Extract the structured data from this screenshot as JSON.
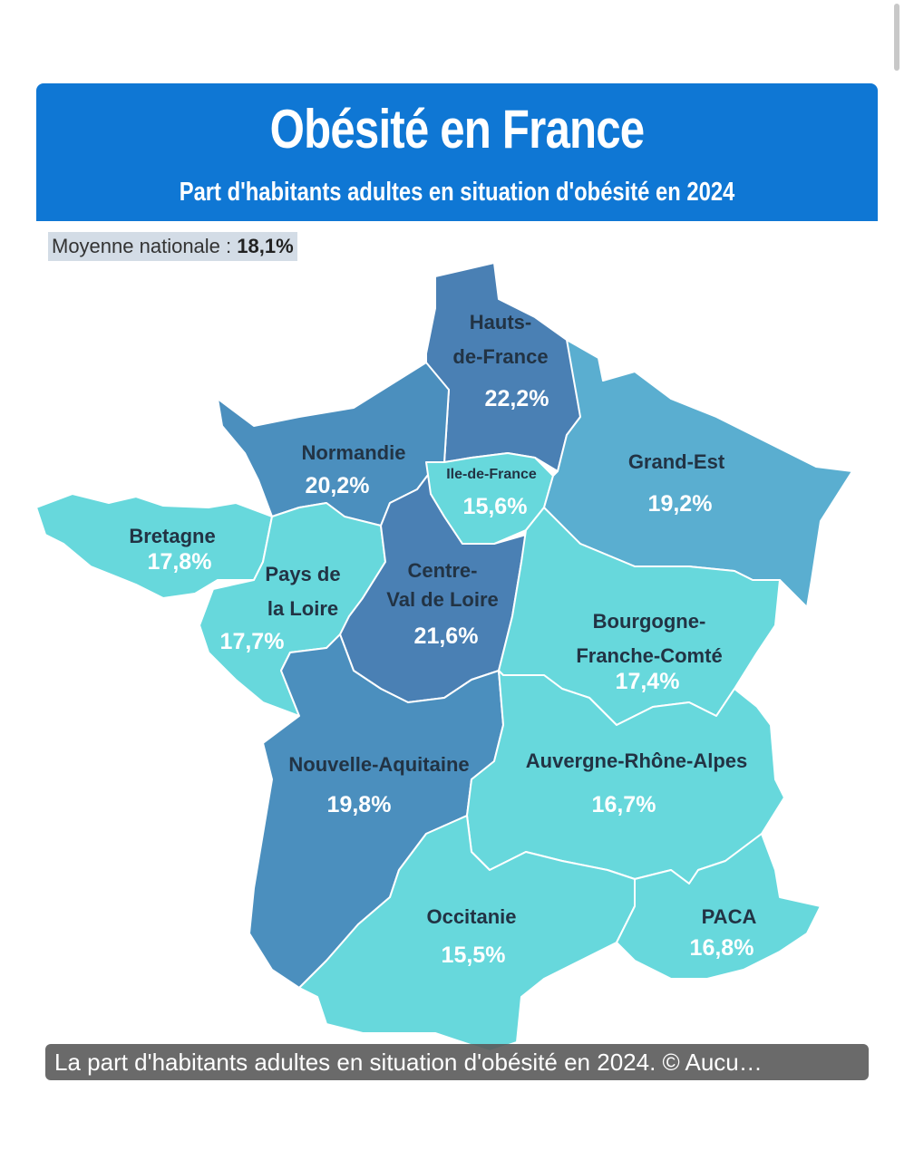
{
  "header": {
    "title": "Obésité en France",
    "subtitle": "Part d'habitants adultes en situation d'obésité en 2024"
  },
  "average": {
    "label": "Moyenne nationale :",
    "value": "18,1%"
  },
  "colors": {
    "banner": "#0f77d4",
    "dark": "#4a80b4",
    "medium": "#4b8fbe",
    "mid_light": "#5aaed0",
    "light": "#67d8dc"
  },
  "regions": [
    {
      "name": "Hauts-de-France",
      "label_lines": [
        "Hauts-",
        "de-France"
      ],
      "value": "22,2%",
      "share": 22.2
    },
    {
      "name": "Normandie",
      "label_lines": [
        "Normandie"
      ],
      "value": "20,2%",
      "share": 20.2
    },
    {
      "name": "Ile-de-France",
      "label_lines": [
        "Ile-de-France"
      ],
      "value": "15,6%",
      "share": 15.6
    },
    {
      "name": "Grand-Est",
      "label_lines": [
        "Grand-Est"
      ],
      "value": "19,2%",
      "share": 19.2
    },
    {
      "name": "Bretagne",
      "label_lines": [
        "Bretagne"
      ],
      "value": "17,8%",
      "share": 17.8
    },
    {
      "name": "Pays de la Loire",
      "label_lines": [
        "Pays de",
        "la Loire"
      ],
      "value": "17,7%",
      "share": 17.7
    },
    {
      "name": "Centre-Val de Loire",
      "label_lines": [
        "Centre-",
        "Val de Loire"
      ],
      "value": "21,6%",
      "share": 21.6
    },
    {
      "name": "Bourgogne-Franche-Comté",
      "label_lines": [
        "Bourgogne-",
        "Franche-Comté"
      ],
      "value": "17,4%",
      "share": 17.4
    },
    {
      "name": "Nouvelle-Aquitaine",
      "label_lines": [
        "Nouvelle-Aquitaine"
      ],
      "value": "19,8%",
      "share": 19.8
    },
    {
      "name": "Auvergne-Rhône-Alpes",
      "label_lines": [
        "Auvergne-Rhône-Alpes"
      ],
      "value": "16,7%",
      "share": 16.7
    },
    {
      "name": "Occitanie",
      "label_lines": [
        "Occitanie"
      ],
      "value": "15,5%",
      "share": 15.5
    },
    {
      "name": "PACA",
      "label_lines": [
        "PACA"
      ],
      "value": "16,8%",
      "share": 16.8
    }
  ],
  "caption": "La part d'habitants adultes en situation d'obésité en 2024. © Aucu…"
}
